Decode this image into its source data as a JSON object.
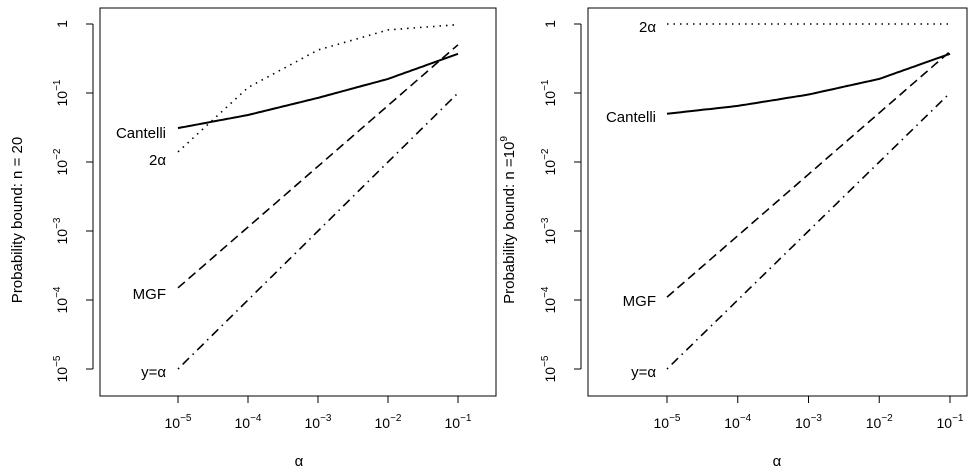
{
  "chart_data": [
    {
      "type": "line",
      "xlabel": "α",
      "ylabel": "Probability bound: n = 20",
      "x_scale": "log",
      "y_scale": "log",
      "xlim": [
        1e-05,
        0.1
      ],
      "ylim": [
        1e-05,
        1
      ],
      "grid": false,
      "x_ticks": [
        {
          "base": "10",
          "exp": "−5"
        },
        {
          "base": "10",
          "exp": "−4"
        },
        {
          "base": "10",
          "exp": "−3"
        },
        {
          "base": "10",
          "exp": "−2"
        },
        {
          "base": "10",
          "exp": "−1"
        }
      ],
      "y_ticks": [
        {
          "base": "10",
          "exp": "−5"
        },
        {
          "base": "10",
          "exp": "−4"
        },
        {
          "base": "10",
          "exp": "−3"
        },
        {
          "base": "10",
          "exp": "−2"
        },
        {
          "base": "10",
          "exp": "−1"
        },
        {
          "base": "1",
          "exp": ""
        }
      ],
      "series": [
        {
          "name": "Cantelli",
          "style": "solid",
          "x": [
            1e-05,
            0.0001,
            0.001,
            0.01,
            0.1
          ],
          "y": [
            0.031,
            0.048,
            0.085,
            0.16,
            0.37
          ]
        },
        {
          "name": "2α",
          "style": "dotted",
          "x": [
            1e-05,
            0.0001,
            0.001,
            0.01,
            0.1
          ],
          "y": [
            0.014,
            0.12,
            0.42,
            0.82,
            0.98
          ]
        },
        {
          "name": "MGF",
          "style": "dashed",
          "x": [
            1e-05,
            0.1
          ],
          "y": [
            0.00015,
            0.5
          ]
        },
        {
          "name": "y=α",
          "style": "dotdash",
          "x": [
            1e-05,
            0.1
          ],
          "y": [
            1e-05,
            0.1
          ]
        }
      ]
    },
    {
      "type": "line",
      "xlabel": "α",
      "ylabel": {
        "text": "Probability bound: n =",
        "base": "10",
        "exp": "9"
      },
      "x_scale": "log",
      "y_scale": "log",
      "xlim": [
        1e-05,
        0.1
      ],
      "ylim": [
        1e-05,
        1
      ],
      "grid": false,
      "x_ticks": [
        {
          "base": "10",
          "exp": "−5"
        },
        {
          "base": "10",
          "exp": "−4"
        },
        {
          "base": "10",
          "exp": "−3"
        },
        {
          "base": "10",
          "exp": "−2"
        },
        {
          "base": "10",
          "exp": "−1"
        }
      ],
      "y_ticks": [
        {
          "base": "10",
          "exp": "−5"
        },
        {
          "base": "10",
          "exp": "−4"
        },
        {
          "base": "10",
          "exp": "−3"
        },
        {
          "base": "10",
          "exp": "−2"
        },
        {
          "base": "10",
          "exp": "−1"
        },
        {
          "base": "1",
          "exp": ""
        }
      ],
      "series": [
        {
          "name": "Cantelli",
          "style": "solid",
          "x": [
            1e-05,
            0.0001,
            0.001,
            0.01,
            0.1
          ],
          "y": [
            0.05,
            0.065,
            0.095,
            0.16,
            0.37
          ]
        },
        {
          "name": "2α",
          "style": "dotted",
          "x": [
            1e-05,
            0.1
          ],
          "y": [
            1,
            1
          ]
        },
        {
          "name": "MGF",
          "style": "dashed",
          "x": [
            1e-05,
            0.1
          ],
          "y": [
            0.00011,
            0.4
          ]
        },
        {
          "name": "y=α",
          "style": "dotdash",
          "x": [
            1e-05,
            0.1
          ],
          "y": [
            1e-05,
            0.1
          ]
        }
      ]
    }
  ]
}
